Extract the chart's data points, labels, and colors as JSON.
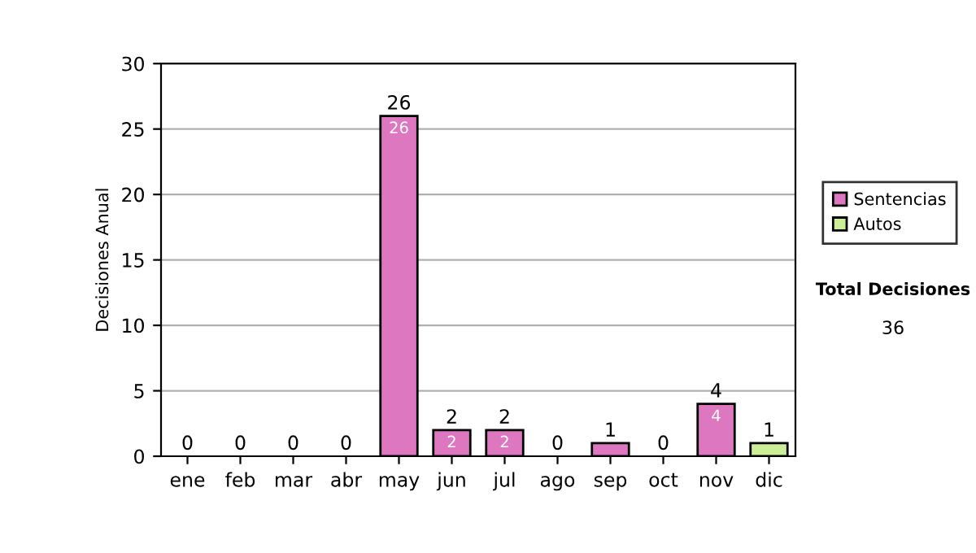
{
  "chart_data": {
    "type": "bar",
    "stacked": true,
    "ylabel": "Decisiones Anual",
    "categories": [
      "ene",
      "feb",
      "mar",
      "abr",
      "may",
      "jun",
      "jul",
      "ago",
      "sep",
      "oct",
      "nov",
      "dic"
    ],
    "series": [
      {
        "name": "Sentencias",
        "color": "#dd77c0",
        "values": [
          0,
          0,
          0,
          0,
          26,
          2,
          2,
          0,
          1,
          0,
          4,
          0
        ],
        "value_labels": [
          null,
          null,
          null,
          null,
          "26",
          "2",
          "2",
          null,
          null,
          null,
          "4",
          null
        ]
      },
      {
        "name": "Autos",
        "color": "#ccee99",
        "values": [
          0,
          0,
          0,
          0,
          0,
          0,
          0,
          0,
          0,
          0,
          0,
          1
        ]
      }
    ],
    "totals": [
      "0",
      "0",
      "0",
      "0",
      "26",
      "2",
      "2",
      "0",
      "1",
      "0",
      "4",
      "1"
    ],
    "ylim": [
      0,
      30
    ],
    "yticks": [
      0,
      5,
      10,
      15,
      20,
      25,
      30
    ],
    "grid": "y",
    "legend": "right",
    "annotations": [
      "Total Decisiones",
      "36"
    ]
  }
}
